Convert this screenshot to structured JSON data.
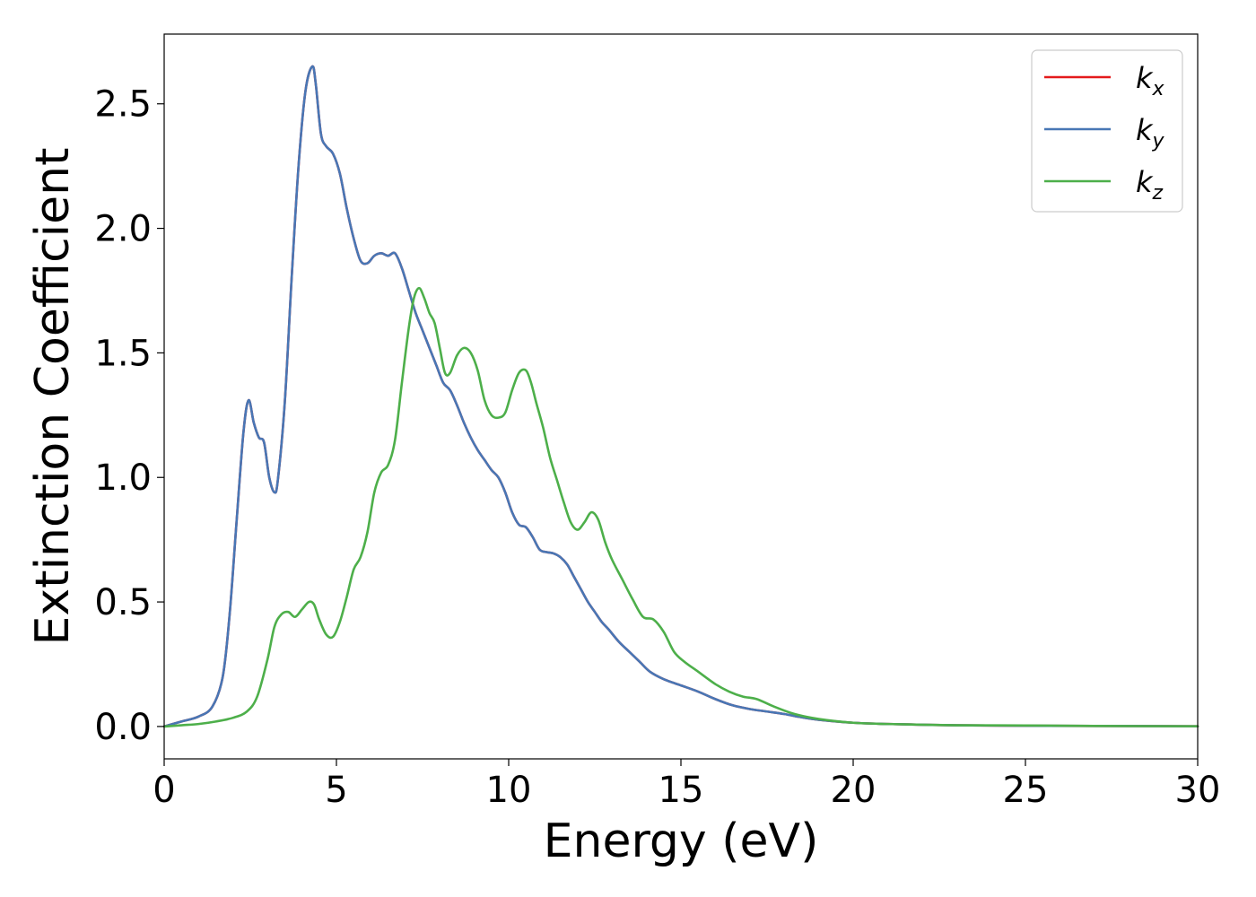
{
  "chart_data": {
    "type": "line",
    "xlabel": "Energy (eV)",
    "ylabel": "Extinction Coefficient",
    "xlim": [
      0,
      30
    ],
    "ylim": [
      -0.13,
      2.78
    ],
    "xticks": [
      0,
      5,
      10,
      15,
      20,
      25,
      30
    ],
    "xtick_labels": [
      "0",
      "5",
      "10",
      "15",
      "20",
      "25",
      "30"
    ],
    "yticks": [
      0.0,
      0.5,
      1.0,
      1.5,
      2.0,
      2.5
    ],
    "ytick_labels": [
      "0.0",
      "0.5",
      "1.0",
      "1.5",
      "2.0",
      "2.5"
    ],
    "grid": false,
    "legend_position": "top-right",
    "series": [
      {
        "name": "k_x",
        "legend_base": "k",
        "legend_sub": "x",
        "color": "#e41a1c",
        "x": [
          0,
          0.5,
          1.0,
          1.4,
          1.7,
          1.9,
          2.1,
          2.3,
          2.45,
          2.6,
          2.75,
          2.9,
          3.05,
          3.2,
          3.3,
          3.5,
          3.7,
          3.9,
          4.1,
          4.3,
          4.4,
          4.55,
          4.7,
          4.9,
          5.1,
          5.3,
          5.5,
          5.7,
          5.9,
          6.1,
          6.3,
          6.5,
          6.7,
          6.9,
          7.1,
          7.3,
          7.5,
          7.7,
          7.9,
          8.1,
          8.3,
          8.5,
          8.7,
          8.9,
          9.1,
          9.3,
          9.5,
          9.7,
          9.9,
          10.1,
          10.3,
          10.5,
          10.7,
          10.9,
          11.1,
          11.3,
          11.5,
          11.7,
          11.9,
          12.1,
          12.3,
          12.5,
          12.7,
          12.9,
          13.2,
          13.5,
          13.8,
          14.1,
          14.5,
          15.0,
          15.5,
          16.0,
          16.5,
          17.0,
          17.5,
          18.0,
          18.5,
          19.0,
          20.0,
          21.0,
          22.0,
          23.0,
          25.0,
          27.0,
          30.0
        ],
        "y": [
          0.0,
          0.02,
          0.04,
          0.08,
          0.2,
          0.45,
          0.82,
          1.18,
          1.31,
          1.22,
          1.16,
          1.14,
          1.0,
          0.94,
          0.99,
          1.3,
          1.8,
          2.25,
          2.55,
          2.65,
          2.58,
          2.38,
          2.33,
          2.3,
          2.22,
          2.08,
          1.96,
          1.87,
          1.86,
          1.89,
          1.9,
          1.89,
          1.9,
          1.84,
          1.75,
          1.66,
          1.59,
          1.52,
          1.45,
          1.38,
          1.35,
          1.29,
          1.22,
          1.16,
          1.11,
          1.07,
          1.03,
          1.0,
          0.94,
          0.86,
          0.81,
          0.8,
          0.76,
          0.71,
          0.7,
          0.695,
          0.68,
          0.65,
          0.6,
          0.55,
          0.5,
          0.46,
          0.42,
          0.39,
          0.34,
          0.3,
          0.26,
          0.22,
          0.19,
          0.165,
          0.14,
          0.11,
          0.085,
          0.07,
          0.06,
          0.05,
          0.037,
          0.027,
          0.015,
          0.01,
          0.007,
          0.005,
          0.003,
          0.002,
          0.001
        ]
      },
      {
        "name": "k_y",
        "legend_base": "k",
        "legend_sub": "y",
        "color": "#4877b5",
        "x": [
          0,
          0.5,
          1.0,
          1.4,
          1.7,
          1.9,
          2.1,
          2.3,
          2.45,
          2.6,
          2.75,
          2.9,
          3.05,
          3.2,
          3.3,
          3.5,
          3.7,
          3.9,
          4.1,
          4.3,
          4.4,
          4.55,
          4.7,
          4.9,
          5.1,
          5.3,
          5.5,
          5.7,
          5.9,
          6.1,
          6.3,
          6.5,
          6.7,
          6.9,
          7.1,
          7.3,
          7.5,
          7.7,
          7.9,
          8.1,
          8.3,
          8.5,
          8.7,
          8.9,
          9.1,
          9.3,
          9.5,
          9.7,
          9.9,
          10.1,
          10.3,
          10.5,
          10.7,
          10.9,
          11.1,
          11.3,
          11.5,
          11.7,
          11.9,
          12.1,
          12.3,
          12.5,
          12.7,
          12.9,
          13.2,
          13.5,
          13.8,
          14.1,
          14.5,
          15.0,
          15.5,
          16.0,
          16.5,
          17.0,
          17.5,
          18.0,
          18.5,
          19.0,
          20.0,
          21.0,
          22.0,
          23.0,
          25.0,
          27.0,
          30.0
        ],
        "y": [
          0.0,
          0.02,
          0.04,
          0.08,
          0.2,
          0.45,
          0.82,
          1.18,
          1.31,
          1.22,
          1.16,
          1.14,
          1.0,
          0.94,
          0.99,
          1.3,
          1.8,
          2.25,
          2.55,
          2.65,
          2.58,
          2.38,
          2.33,
          2.3,
          2.22,
          2.08,
          1.96,
          1.87,
          1.86,
          1.89,
          1.9,
          1.89,
          1.9,
          1.84,
          1.75,
          1.66,
          1.59,
          1.52,
          1.45,
          1.38,
          1.35,
          1.29,
          1.22,
          1.16,
          1.11,
          1.07,
          1.03,
          1.0,
          0.94,
          0.86,
          0.81,
          0.8,
          0.76,
          0.71,
          0.7,
          0.695,
          0.68,
          0.65,
          0.6,
          0.55,
          0.5,
          0.46,
          0.42,
          0.39,
          0.34,
          0.3,
          0.26,
          0.22,
          0.19,
          0.165,
          0.14,
          0.11,
          0.085,
          0.07,
          0.06,
          0.05,
          0.037,
          0.027,
          0.015,
          0.01,
          0.007,
          0.005,
          0.003,
          0.002,
          0.001
        ]
      },
      {
        "name": "k_z",
        "legend_base": "k",
        "legend_sub": "z",
        "color": "#4daf4a",
        "x": [
          0,
          0.5,
          1.0,
          1.5,
          2.0,
          2.4,
          2.7,
          3.0,
          3.2,
          3.4,
          3.6,
          3.8,
          4.0,
          4.2,
          4.35,
          4.5,
          4.7,
          4.9,
          5.1,
          5.3,
          5.5,
          5.7,
          5.9,
          6.1,
          6.3,
          6.5,
          6.7,
          6.9,
          7.1,
          7.25,
          7.4,
          7.55,
          7.7,
          7.85,
          8.0,
          8.15,
          8.3,
          8.5,
          8.7,
          8.9,
          9.1,
          9.3,
          9.5,
          9.7,
          9.9,
          10.1,
          10.3,
          10.5,
          10.65,
          10.8,
          11.0,
          11.2,
          11.4,
          11.6,
          11.8,
          12.0,
          12.2,
          12.4,
          12.6,
          12.8,
          13.0,
          13.3,
          13.6,
          13.9,
          14.2,
          14.5,
          14.8,
          15.1,
          15.5,
          16.0,
          16.4,
          16.8,
          17.2,
          17.7,
          18.3,
          19.0,
          20.0,
          21.0,
          22.0,
          23.0,
          25.0,
          27.0,
          30.0
        ],
        "y": [
          0.0,
          0.005,
          0.01,
          0.02,
          0.035,
          0.06,
          0.12,
          0.27,
          0.4,
          0.45,
          0.46,
          0.44,
          0.47,
          0.5,
          0.49,
          0.43,
          0.37,
          0.36,
          0.42,
          0.52,
          0.63,
          0.68,
          0.78,
          0.94,
          1.02,
          1.05,
          1.15,
          1.38,
          1.6,
          1.72,
          1.76,
          1.72,
          1.66,
          1.62,
          1.52,
          1.42,
          1.42,
          1.49,
          1.52,
          1.5,
          1.43,
          1.31,
          1.25,
          1.24,
          1.26,
          1.35,
          1.42,
          1.43,
          1.38,
          1.3,
          1.2,
          1.08,
          0.99,
          0.9,
          0.82,
          0.79,
          0.82,
          0.86,
          0.83,
          0.74,
          0.67,
          0.59,
          0.51,
          0.44,
          0.43,
          0.38,
          0.3,
          0.26,
          0.22,
          0.17,
          0.14,
          0.12,
          0.11,
          0.08,
          0.05,
          0.03,
          0.015,
          0.01,
          0.007,
          0.005,
          0.004,
          0.002,
          0.001
        ]
      }
    ]
  }
}
